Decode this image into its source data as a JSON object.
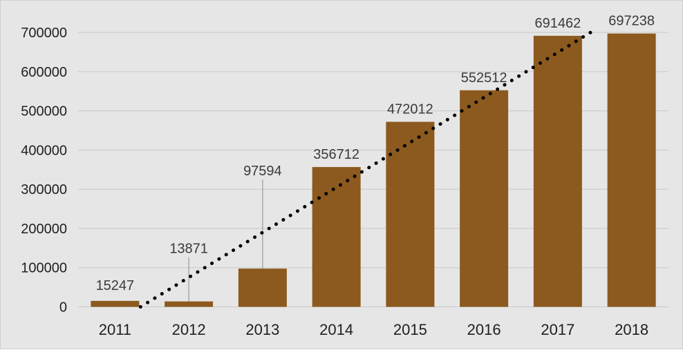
{
  "chart_data": {
    "type": "bar",
    "categories": [
      "2011",
      "2012",
      "2013",
      "2014",
      "2015",
      "2016",
      "2017",
      "2018"
    ],
    "values": [
      15247,
      13871,
      97594,
      356712,
      472012,
      552512,
      691462,
      697238
    ],
    "data_labels": [
      "15247",
      "13871",
      "97594",
      "356712",
      "472012",
      "552512",
      "691462",
      "697238"
    ],
    "y_ticks": [
      "0",
      "100000",
      "200000",
      "300000",
      "400000",
      "500000",
      "600000",
      "700000"
    ],
    "ylim": [
      0,
      700000
    ],
    "title": "",
    "xlabel": "",
    "ylabel": "",
    "grid": true,
    "legend": "none",
    "trendline": {
      "type": "linear",
      "style": "dotted",
      "color": "#000000"
    },
    "colors": {
      "bar": "#8c5a1e",
      "background": "#e6e6e6",
      "grid": "#c8c8c8"
    }
  }
}
